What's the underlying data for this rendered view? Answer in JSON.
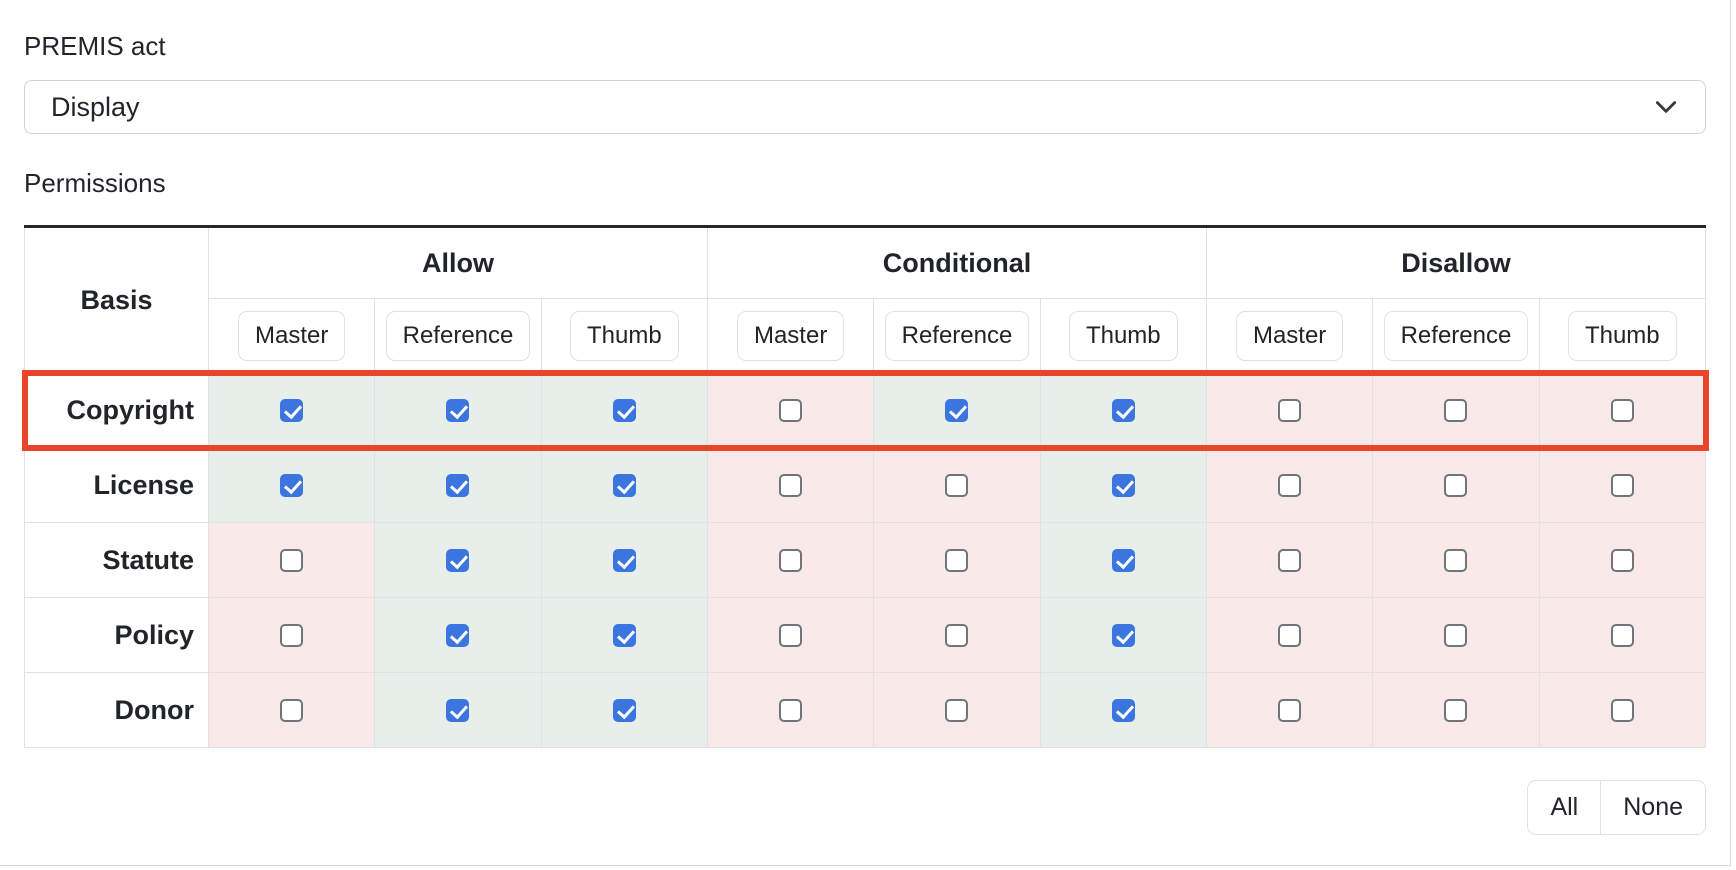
{
  "form": {
    "premis_act_label": "PREMIS act",
    "premis_act_value": "Display",
    "permissions_label": "Permissions"
  },
  "table": {
    "basis_header": "Basis",
    "groups": [
      {
        "label": "Allow",
        "subcolumns": [
          "Master",
          "Reference",
          "Thumb"
        ]
      },
      {
        "label": "Conditional",
        "subcolumns": [
          "Master",
          "Reference",
          "Thumb"
        ]
      },
      {
        "label": "Disallow",
        "subcolumns": [
          "Master",
          "Reference",
          "Thumb"
        ]
      }
    ],
    "rows": [
      {
        "basis": "Copyright",
        "highlighted": true,
        "checks": [
          true,
          true,
          true,
          false,
          true,
          true,
          false,
          false,
          false
        ]
      },
      {
        "basis": "License",
        "highlighted": false,
        "checks": [
          true,
          true,
          true,
          false,
          false,
          true,
          false,
          false,
          false
        ]
      },
      {
        "basis": "Statute",
        "highlighted": false,
        "checks": [
          false,
          true,
          true,
          false,
          false,
          true,
          false,
          false,
          false
        ]
      },
      {
        "basis": "Policy",
        "highlighted": false,
        "checks": [
          false,
          true,
          true,
          false,
          false,
          true,
          false,
          false,
          false
        ]
      },
      {
        "basis": "Donor",
        "highlighted": false,
        "checks": [
          false,
          true,
          true,
          false,
          false,
          true,
          false,
          false,
          false
        ]
      }
    ]
  },
  "actions": {
    "all_label": "All",
    "none_label": "None"
  },
  "colors": {
    "checked_cell_bg": "#e8efea",
    "unchecked_cell_bg": "#f9e9e9",
    "checkbox_checked": "#3b76e0",
    "highlight_border": "#e8452b"
  }
}
